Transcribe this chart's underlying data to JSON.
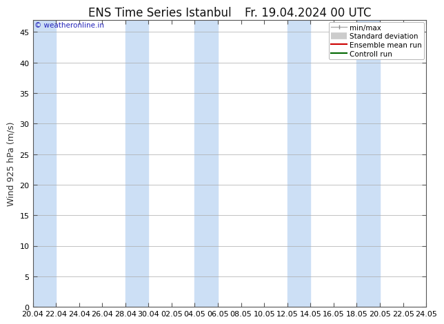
{
  "title_left": "ENS Time Series Istanbul",
  "title_right": "Fr. 19.04.2024 00 UTC",
  "ylabel": "Wind 925 hPa (m/s)",
  "watermark": "© weatheronline.in",
  "watermark_color": "#2222bb",
  "ylim": [
    0,
    47
  ],
  "yticks": [
    0,
    5,
    10,
    15,
    20,
    25,
    30,
    35,
    40,
    45
  ],
  "bg_color": "#ffffff",
  "plot_bg_color": "#ffffff",
  "band_color": "#ccdff5",
  "x_start_days": 0,
  "x_end_days": 34,
  "xtick_positions": [
    0,
    2,
    4,
    6,
    8,
    10,
    12,
    14,
    16,
    18,
    20,
    22,
    24,
    26,
    28,
    30,
    32,
    34
  ],
  "xtick_labels": [
    "20.04",
    "22.04",
    "24.04",
    "26.04",
    "28.04",
    "30.04",
    "02.05",
    "04.05",
    "06.05",
    "08.05",
    "10.05",
    "12.05",
    "14.05",
    "16.05",
    "18.05",
    "20.05",
    "22.05",
    "24.05"
  ],
  "shaded_spans": [
    [
      0,
      2
    ],
    [
      8,
      10
    ],
    [
      14,
      16
    ],
    [
      22,
      24
    ],
    [
      28,
      30
    ]
  ],
  "legend_entries": [
    "min/max",
    "Standard deviation",
    "Ensemble mean run",
    "Controll run"
  ],
  "title_fontsize": 12,
  "ylabel_fontsize": 9,
  "tick_fontsize": 8,
  "legend_fontsize": 7.5
}
